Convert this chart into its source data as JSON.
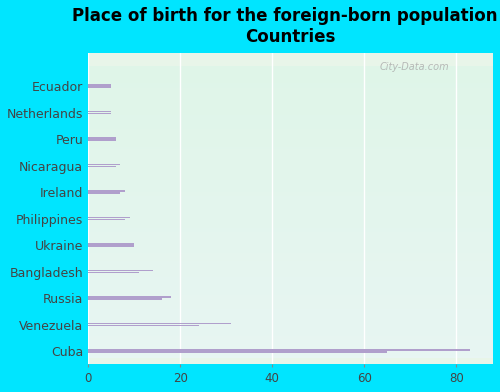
{
  "title": "Place of birth for the foreign-born population -\nCountries",
  "categories": [
    "Cuba",
    "Venezuela",
    "Russia",
    "Bangladesh",
    "Ukraine",
    "Philippines",
    "Ireland",
    "Nicaragua",
    "Peru",
    "Netherlands",
    "Ecuador"
  ],
  "bar1_values": [
    83,
    31,
    18,
    14,
    10,
    9,
    8,
    7,
    6,
    5,
    5
  ],
  "bar2_values": [
    65,
    24,
    16,
    11,
    10,
    8,
    7,
    6,
    6,
    5,
    5
  ],
  "bar_color": "#b09fcc",
  "background_color": "#00e5ff",
  "plot_bg_gradient_top": "#e8f5e9",
  "plot_bg_gradient_bottom": "#e0f7fa",
  "xlim": [
    0,
    88
  ],
  "xticks": [
    0,
    20,
    40,
    60,
    80
  ],
  "bar_height": 0.12,
  "bar_gap": 0.04,
  "title_fontsize": 12,
  "tick_fontsize": 8.5,
  "ytick_fontsize": 9,
  "watermark": "City-Data.com",
  "total_yticks": 22,
  "ymax": 22
}
